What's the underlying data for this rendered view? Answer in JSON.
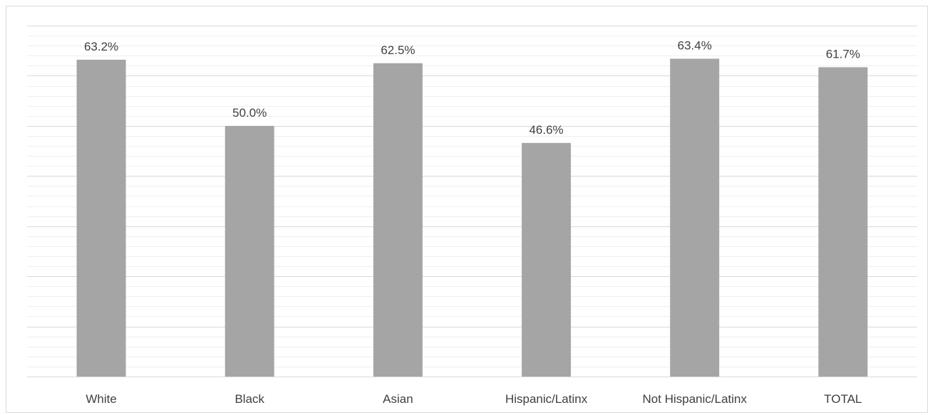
{
  "chart_data": {
    "type": "bar",
    "categories": [
      "White",
      "Black",
      "Asian",
      "Hispanic/Latinx",
      "Not Hispanic/Latinx",
      "TOTAL"
    ],
    "values": [
      63.2,
      50.0,
      62.5,
      46.6,
      63.4,
      61.7
    ],
    "data_labels": [
      "63.2%",
      "50.0%",
      "62.5%",
      "46.6%",
      "63.4%",
      "61.7%"
    ],
    "ylim": [
      0,
      70
    ],
    "y_axis_visible": false,
    "grid": true,
    "legend": "none",
    "colors": {
      "bar": "#a5a5a5",
      "major_grid": "#d9d9d9",
      "minor_grid": "#efefef",
      "axis": "#d9d9d9",
      "label_text": "#404040",
      "caption_text": "#595959"
    }
  }
}
